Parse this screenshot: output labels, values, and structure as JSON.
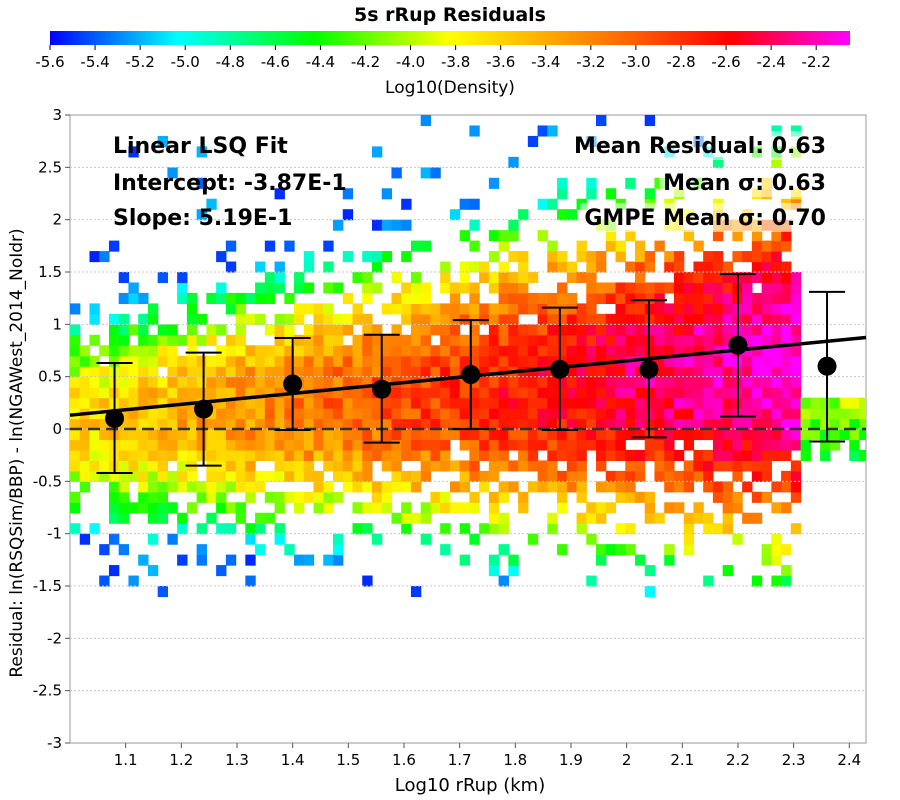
{
  "chart_data": {
    "type": "heatmap",
    "title": "5s rRup Residuals",
    "xlabel": "Log10 rRup (km)",
    "ylabel": "Residual: ln(RSQSim/BBP) - ln(NGAWest_2014_NoIdr)",
    "xlim": [
      1.0,
      2.43
    ],
    "ylim": [
      -3,
      3
    ],
    "x_ticks": [
      1.1,
      1.2,
      1.3,
      1.4,
      1.5,
      1.6,
      1.7,
      1.8,
      1.9,
      2.0,
      2.1,
      2.2,
      2.3,
      2.4
    ],
    "x_tick_labels": [
      "1.1",
      "1.2",
      "1.3",
      "1.4",
      "1.5",
      "1.6",
      "1.7",
      "1.8",
      "1.9",
      "2",
      "2.1",
      "2.2",
      "2.3",
      "2.4"
    ],
    "y_ticks": [
      -3,
      -2.5,
      -2,
      -1.5,
      -1,
      -0.5,
      0,
      0.5,
      1,
      1.5,
      2,
      2.5,
      3
    ],
    "y_tick_labels": [
      "-3",
      "-2.5",
      "-2",
      "-1.5",
      "-1",
      "-0.5",
      "0",
      "0.5",
      "1",
      "1.5",
      "2",
      "2.5",
      "3"
    ],
    "colorbar": {
      "label": "Log10(Density)",
      "range": [
        -5.6,
        -2.05
      ],
      "tick_labels": [
        "-5.6",
        "-5.4",
        "-5.2",
        "-5.0",
        "-4.8",
        "-4.6",
        "-4.4",
        "-4.2",
        "-4.0",
        "-3.8",
        "-3.6",
        "-3.4",
        "-3.2",
        "-3.0",
        "-2.8",
        "-2.6",
        "-2.4",
        "-2.2"
      ]
    },
    "fit_line": {
      "intercept": -0.387,
      "slope": 0.519
    },
    "zero_line": 0,
    "binned_means": [
      {
        "x": 1.08,
        "mean": 0.1,
        "lower": -0.42,
        "upper": 0.63
      },
      {
        "x": 1.24,
        "mean": 0.19,
        "lower": -0.35,
        "upper": 0.73
      },
      {
        "x": 1.4,
        "mean": 0.43,
        "lower": -0.01,
        "upper": 0.87
      },
      {
        "x": 1.56,
        "mean": 0.38,
        "lower": -0.13,
        "upper": 0.9
      },
      {
        "x": 1.72,
        "mean": 0.52,
        "lower": 0.0,
        "upper": 1.04
      },
      {
        "x": 1.88,
        "mean": 0.57,
        "lower": -0.01,
        "upper": 1.16
      },
      {
        "x": 2.04,
        "mean": 0.57,
        "lower": -0.08,
        "upper": 1.23
      },
      {
        "x": 2.2,
        "mean": 0.8,
        "lower": 0.12,
        "upper": 1.48
      },
      {
        "x": 2.36,
        "mean": 0.6,
        "lower": -0.12,
        "upper": 1.31
      }
    ],
    "annotations": {
      "left": [
        "Linear LSQ Fit",
        "Intercept: -3.87E-1",
        "Slope: 5.19E-1"
      ],
      "right": [
        "Mean Residual: 0.63",
        "Mean σ: 0.63",
        "GMPE Mean σ: 0.70"
      ]
    }
  }
}
